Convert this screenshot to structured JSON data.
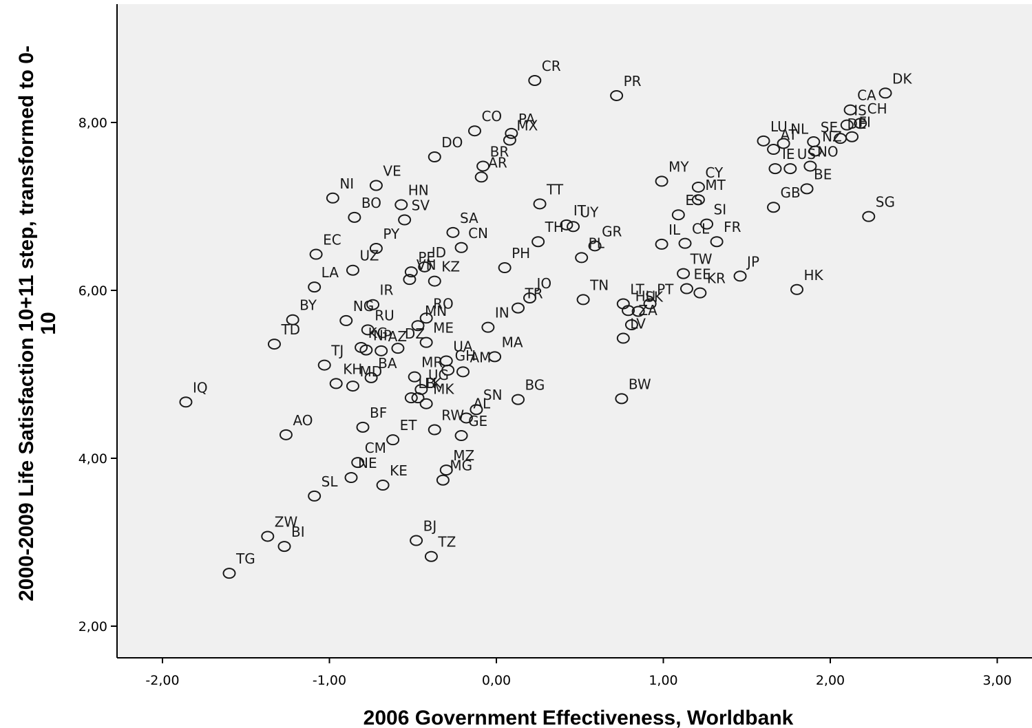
{
  "chart_data": {
    "type": "scatter",
    "xlabel": "2006 Government Effectiveness, Worldbank",
    "ylabel_lines": [
      "2000-2009 Life Satisfaction 10+11 step, transformed to 0-",
      "10"
    ],
    "xlim": [
      -2.28,
      3.22
    ],
    "ylim": [
      1.6,
      9.4
    ],
    "grid": false,
    "x_ticks": [
      -2,
      -1,
      0,
      1,
      2,
      3
    ],
    "x_tick_labels": [
      "-2,00",
      "-1,00",
      "0,00",
      "1,00",
      "2,00",
      "3,00"
    ],
    "y_ticks": [
      2,
      4,
      6,
      8
    ],
    "y_tick_labels": [
      "2,00",
      "4,00",
      "6,00",
      "8,00"
    ],
    "colors": {
      "plot_bg": "#f0f0f0",
      "marker": "#1a1a1a"
    },
    "points": [
      {
        "label": "CR",
        "x": 0.23,
        "y": 8.5
      },
      {
        "label": "PR",
        "x": 0.72,
        "y": 8.32
      },
      {
        "label": "DK",
        "x": 2.33,
        "y": 8.35
      },
      {
        "label": "CA",
        "x": 2.12,
        "y": 8.15
      },
      {
        "label": "IS",
        "x": 2.1,
        "y": 7.97
      },
      {
        "label": "CH",
        "x": 2.18,
        "y": 7.99
      },
      {
        "label": "LU",
        "x": 1.6,
        "y": 7.78
      },
      {
        "label": "NL",
        "x": 1.72,
        "y": 7.75
      },
      {
        "label": "SE",
        "x": 1.9,
        "y": 7.77
      },
      {
        "label": "FI",
        "x": 2.13,
        "y": 7.83
      },
      {
        "label": "AT",
        "x": 1.66,
        "y": 7.68
      },
      {
        "label": "IE",
        "x": 1.67,
        "y": 7.45
      },
      {
        "label": "NO",
        "x": 1.88,
        "y": 7.48
      },
      {
        "label": "US",
        "x": 1.76,
        "y": 7.45
      },
      {
        "label": "BE",
        "x": 1.86,
        "y": 7.21
      },
      {
        "label": "NZ",
        "x": 1.91,
        "y": 7.66
      },
      {
        "label": "GB",
        "x": 1.66,
        "y": 6.99
      },
      {
        "label": "SG",
        "x": 2.23,
        "y": 6.88
      },
      {
        "label": "DE",
        "x": 2.06,
        "y": 7.81
      },
      {
        "label": "PA",
        "x": 0.09,
        "y": 7.87
      },
      {
        "label": "MX",
        "x": 0.08,
        "y": 7.79
      },
      {
        "label": "CO",
        "x": -0.13,
        "y": 7.9
      },
      {
        "label": "DO",
        "x": -0.37,
        "y": 7.59
      },
      {
        "label": "BR",
        "x": -0.08,
        "y": 7.48
      },
      {
        "label": "AR",
        "x": -0.09,
        "y": 7.35
      },
      {
        "label": "VE",
        "x": -0.72,
        "y": 7.25
      },
      {
        "label": "NI",
        "x": -0.98,
        "y": 7.1
      },
      {
        "label": "HN",
        "x": -0.57,
        "y": 7.02
      },
      {
        "label": "BO",
        "x": -0.85,
        "y": 6.87
      },
      {
        "label": "SV",
        "x": -0.55,
        "y": 6.84
      },
      {
        "label": "PY",
        "x": -0.72,
        "y": 6.5
      },
      {
        "label": "EC",
        "x": -1.08,
        "y": 6.43
      },
      {
        "label": "SA",
        "x": -0.26,
        "y": 6.69
      },
      {
        "label": "CN",
        "x": -0.21,
        "y": 6.51
      },
      {
        "label": "ID",
        "x": -0.43,
        "y": 6.28
      },
      {
        "label": "PE",
        "x": -0.51,
        "y": 6.22
      },
      {
        "label": "UZ",
        "x": -0.86,
        "y": 6.24
      },
      {
        "label": "LA",
        "x": -1.09,
        "y": 6.04
      },
      {
        "label": "VN",
        "x": -0.52,
        "y": 6.13
      },
      {
        "label": "KZ",
        "x": -0.37,
        "y": 6.11
      },
      {
        "label": "PH",
        "x": 0.05,
        "y": 6.27
      },
      {
        "label": "JO",
        "x": 0.2,
        "y": 5.91
      },
      {
        "label": "TT",
        "x": 0.26,
        "y": 7.03
      },
      {
        "label": "IT",
        "x": 0.42,
        "y": 6.78
      },
      {
        "label": "UY",
        "x": 0.46,
        "y": 6.76
      },
      {
        "label": "TH",
        "x": 0.25,
        "y": 6.58
      },
      {
        "label": "GR",
        "x": 0.59,
        "y": 6.53
      },
      {
        "label": "PL",
        "x": 0.51,
        "y": 6.39
      },
      {
        "label": "MY",
        "x": 0.99,
        "y": 7.3
      },
      {
        "label": "CY",
        "x": 1.21,
        "y": 7.23
      },
      {
        "label": "MT",
        "x": 1.21,
        "y": 7.08
      },
      {
        "label": "ES",
        "x": 1.09,
        "y": 6.9
      },
      {
        "label": "SI",
        "x": 1.26,
        "y": 6.79
      },
      {
        "label": "IL",
        "x": 0.99,
        "y": 6.55
      },
      {
        "label": "CL",
        "x": 1.13,
        "y": 6.56
      },
      {
        "label": "TW",
        "x": 1.12,
        "y": 6.2
      },
      {
        "label": "FR",
        "x": 1.32,
        "y": 6.58
      },
      {
        "label": "EE",
        "x": 1.14,
        "y": 6.02
      },
      {
        "label": "JP",
        "x": 1.46,
        "y": 6.17
      },
      {
        "label": "HK",
        "x": 1.8,
        "y": 6.01
      },
      {
        "label": "KR",
        "x": 1.22,
        "y": 5.97
      },
      {
        "label": "LT",
        "x": 0.76,
        "y": 5.84
      },
      {
        "label": "PT",
        "x": 0.92,
        "y": 5.84
      },
      {
        "label": "TN",
        "x": 0.52,
        "y": 5.89
      },
      {
        "label": "SK",
        "x": 0.85,
        "y": 5.75
      },
      {
        "label": "ZA",
        "x": 0.81,
        "y": 5.59
      },
      {
        "label": "HU",
        "x": 0.79,
        "y": 5.76
      },
      {
        "label": "LV",
        "x": 0.76,
        "y": 5.43
      },
      {
        "label": "BW",
        "x": 0.75,
        "y": 4.71
      },
      {
        "label": "BY",
        "x": -1.22,
        "y": 5.65
      },
      {
        "label": "TD",
        "x": -1.33,
        "y": 5.36
      },
      {
        "label": "NG",
        "x": -0.9,
        "y": 5.64
      },
      {
        "label": "IR",
        "x": -0.74,
        "y": 5.83
      },
      {
        "label": "RU",
        "x": -0.77,
        "y": 5.53
      },
      {
        "label": "KG",
        "x": -0.81,
        "y": 5.32
      },
      {
        "label": "TJ",
        "x": -1.03,
        "y": 5.11
      },
      {
        "label": "NP",
        "x": -0.78,
        "y": 5.29
      },
      {
        "label": "MN",
        "x": -0.47,
        "y": 5.58
      },
      {
        "label": "RO",
        "x": -0.42,
        "y": 5.67
      },
      {
        "label": "DZ",
        "x": -0.59,
        "y": 5.31
      },
      {
        "label": "ME",
        "x": -0.42,
        "y": 5.38
      },
      {
        "label": "IN",
        "x": -0.05,
        "y": 5.56
      },
      {
        "label": "TR",
        "x": 0.13,
        "y": 5.79
      },
      {
        "label": "MA",
        "x": -0.01,
        "y": 5.21
      },
      {
        "label": "AZ",
        "x": -0.69,
        "y": 5.28
      },
      {
        "label": "BA",
        "x": -0.75,
        "y": 4.96
      },
      {
        "label": "UA",
        "x": -0.3,
        "y": 5.16
      },
      {
        "label": "AM",
        "x": -0.2,
        "y": 5.03
      },
      {
        "label": "GH",
        "x": -0.29,
        "y": 5.05
      },
      {
        "label": "BG",
        "x": 0.13,
        "y": 4.7
      },
      {
        "label": "IQ",
        "x": -1.86,
        "y": 4.67
      },
      {
        "label": "KH",
        "x": -0.96,
        "y": 4.89
      },
      {
        "label": "MD",
        "x": -0.86,
        "y": 4.86
      },
      {
        "label": "MR",
        "x": -0.49,
        "y": 4.97
      },
      {
        "label": "UG",
        "x": -0.45,
        "y": 4.82
      },
      {
        "label": "LK",
        "x": -0.47,
        "y": 4.72
      },
      {
        "label": "MK",
        "x": -0.42,
        "y": 4.65
      },
      {
        "label": "LB",
        "x": -0.51,
        "y": 4.72
      },
      {
        "label": "AL",
        "x": -0.18,
        "y": 4.48
      },
      {
        "label": "AO",
        "x": -1.26,
        "y": 4.28
      },
      {
        "label": "BF",
        "x": -0.8,
        "y": 4.37
      },
      {
        "label": "ET",
        "x": -0.62,
        "y": 4.22
      },
      {
        "label": "RW",
        "x": -0.37,
        "y": 4.34
      },
      {
        "label": "GE",
        "x": -0.21,
        "y": 4.27
      },
      {
        "label": "MZ",
        "x": -0.3,
        "y": 3.86
      },
      {
        "label": "SN",
        "x": -0.12,
        "y": 4.58
      },
      {
        "label": "NE",
        "x": -0.87,
        "y": 3.77
      },
      {
        "label": "CM",
        "x": -0.83,
        "y": 3.95
      },
      {
        "label": "KE",
        "x": -0.68,
        "y": 3.68
      },
      {
        "label": "MG",
        "x": -0.32,
        "y": 3.74
      },
      {
        "label": "SL",
        "x": -1.09,
        "y": 3.55
      },
      {
        "label": "ZW",
        "x": -1.37,
        "y": 3.07
      },
      {
        "label": "BI",
        "x": -1.27,
        "y": 2.95
      },
      {
        "label": "TG",
        "x": -1.6,
        "y": 2.63
      },
      {
        "label": "BJ",
        "x": -0.48,
        "y": 3.02
      },
      {
        "label": "TZ",
        "x": -0.39,
        "y": 2.83
      }
    ]
  }
}
